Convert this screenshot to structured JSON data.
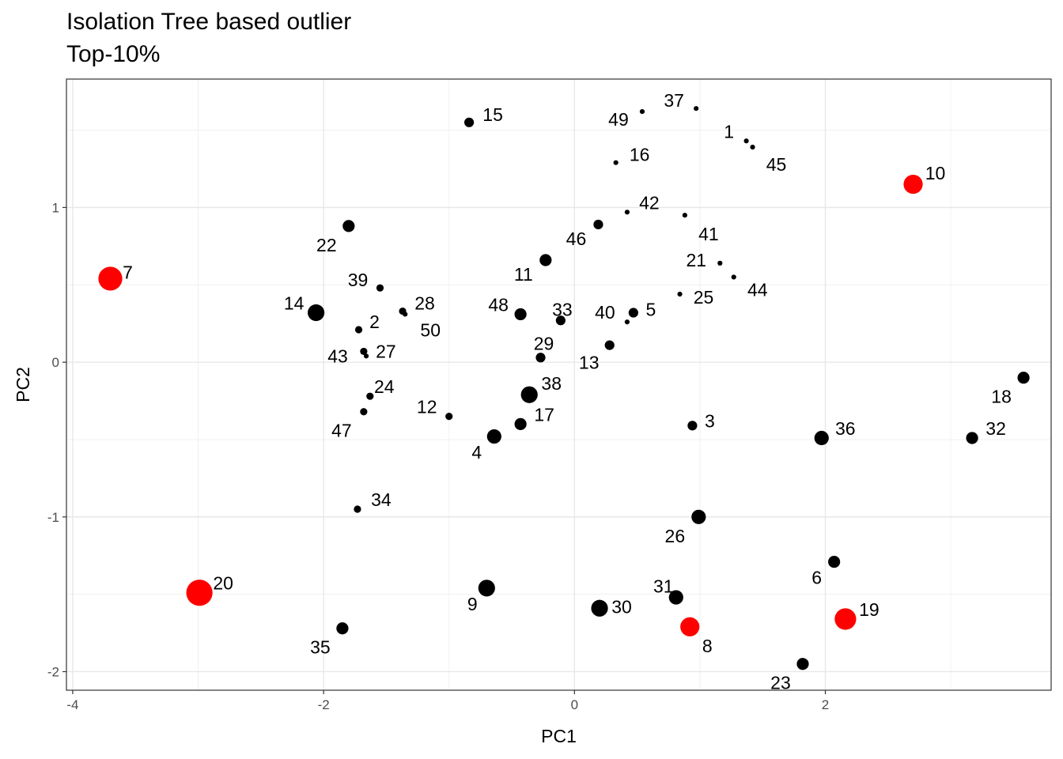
{
  "chart_data": {
    "type": "scatter",
    "title": "Isolation Tree based outlier",
    "subtitle": "Top-10%",
    "xlabel": "PC1",
    "ylabel": "PC2",
    "xlim": [
      -4.05,
      3.8
    ],
    "ylim": [
      -2.12,
      1.83
    ],
    "xticks": [
      -4,
      -2,
      0,
      2
    ],
    "yticks": [
      1,
      0,
      -1,
      -2
    ],
    "grid": true,
    "legend": "none",
    "colors": {
      "normal": "#000000",
      "outlier": "#ff0000"
    },
    "points": [
      {
        "id": "1",
        "x": 1.37,
        "y": 1.43,
        "size": 1,
        "outlier": false
      },
      {
        "id": "2",
        "x": -1.72,
        "y": 0.21,
        "size": 2,
        "outlier": false
      },
      {
        "id": "3",
        "x": 0.94,
        "y": -0.41,
        "size": 3,
        "outlier": false
      },
      {
        "id": "4",
        "x": -0.64,
        "y": -0.48,
        "size": 5,
        "outlier": false
      },
      {
        "id": "5",
        "x": 0.47,
        "y": 0.32,
        "size": 3,
        "outlier": false
      },
      {
        "id": "6",
        "x": 2.07,
        "y": -1.29,
        "size": 4,
        "outlier": false
      },
      {
        "id": "7",
        "x": -3.7,
        "y": 0.54,
        "size": 9,
        "outlier": true
      },
      {
        "id": "8",
        "x": 0.92,
        "y": -1.71,
        "size": 7,
        "outlier": true
      },
      {
        "id": "9",
        "x": -0.7,
        "y": -1.46,
        "size": 6,
        "outlier": false
      },
      {
        "id": "10",
        "x": 2.7,
        "y": 1.15,
        "size": 7,
        "outlier": true
      },
      {
        "id": "11",
        "x": -0.23,
        "y": 0.66,
        "size": 4,
        "outlier": false
      },
      {
        "id": "12",
        "x": -1.0,
        "y": -0.35,
        "size": 2,
        "outlier": false
      },
      {
        "id": "13",
        "x": 0.28,
        "y": 0.11,
        "size": 3,
        "outlier": false
      },
      {
        "id": "14",
        "x": -2.06,
        "y": 0.32,
        "size": 6,
        "outlier": false
      },
      {
        "id": "15",
        "x": -0.84,
        "y": 1.55,
        "size": 3,
        "outlier": false
      },
      {
        "id": "16",
        "x": 0.33,
        "y": 1.29,
        "size": 1,
        "outlier": false
      },
      {
        "id": "17",
        "x": -0.43,
        "y": -0.4,
        "size": 4,
        "outlier": false
      },
      {
        "id": "18",
        "x": 3.58,
        "y": -0.1,
        "size": 4,
        "outlier": false
      },
      {
        "id": "19",
        "x": 2.16,
        "y": -1.66,
        "size": 8,
        "outlier": true
      },
      {
        "id": "20",
        "x": -2.99,
        "y": -1.49,
        "size": 10,
        "outlier": true
      },
      {
        "id": "21",
        "x": 1.16,
        "y": 0.64,
        "size": 1,
        "outlier": false
      },
      {
        "id": "22",
        "x": -1.8,
        "y": 0.88,
        "size": 4,
        "outlier": false
      },
      {
        "id": "23",
        "x": 1.82,
        "y": -1.95,
        "size": 4,
        "outlier": false
      },
      {
        "id": "24",
        "x": -1.63,
        "y": -0.22,
        "size": 2,
        "outlier": false
      },
      {
        "id": "25",
        "x": 0.84,
        "y": 0.44,
        "size": 1,
        "outlier": false
      },
      {
        "id": "26",
        "x": 0.99,
        "y": -1.0,
        "size": 5,
        "outlier": false
      },
      {
        "id": "27",
        "x": -1.68,
        "y": 0.07,
        "size": 2,
        "outlier": false
      },
      {
        "id": "28",
        "x": -1.37,
        "y": 0.33,
        "size": 2,
        "outlier": false
      },
      {
        "id": "29",
        "x": -0.27,
        "y": 0.03,
        "size": 3,
        "outlier": false
      },
      {
        "id": "30",
        "x": 0.2,
        "y": -1.59,
        "size": 6,
        "outlier": false
      },
      {
        "id": "31",
        "x": 0.81,
        "y": -1.52,
        "size": 5,
        "outlier": false
      },
      {
        "id": "32",
        "x": 3.17,
        "y": -0.49,
        "size": 4,
        "outlier": false
      },
      {
        "id": "33",
        "x": -0.11,
        "y": 0.27,
        "size": 3,
        "outlier": false
      },
      {
        "id": "34",
        "x": -1.73,
        "y": -0.95,
        "size": 2,
        "outlier": false
      },
      {
        "id": "35",
        "x": -1.85,
        "y": -1.72,
        "size": 4,
        "outlier": false
      },
      {
        "id": "36",
        "x": 1.97,
        "y": -0.49,
        "size": 5,
        "outlier": false
      },
      {
        "id": "37",
        "x": 0.97,
        "y": 1.64,
        "size": 1,
        "outlier": false
      },
      {
        "id": "38",
        "x": -0.36,
        "y": -0.21,
        "size": 6,
        "outlier": false
      },
      {
        "id": "39",
        "x": -1.55,
        "y": 0.48,
        "size": 2,
        "outlier": false
      },
      {
        "id": "40",
        "x": 0.42,
        "y": 0.26,
        "size": 1,
        "outlier": false
      },
      {
        "id": "41",
        "x": 0.88,
        "y": 0.95,
        "size": 1,
        "outlier": false
      },
      {
        "id": "42",
        "x": 0.42,
        "y": 0.97,
        "size": 1,
        "outlier": false
      },
      {
        "id": "43",
        "x": -1.66,
        "y": 0.04,
        "size": 1,
        "outlier": false
      },
      {
        "id": "44",
        "x": 1.27,
        "y": 0.55,
        "size": 1,
        "outlier": false
      },
      {
        "id": "45",
        "x": 1.42,
        "y": 1.39,
        "size": 1,
        "outlier": false
      },
      {
        "id": "46",
        "x": 0.19,
        "y": 0.89,
        "size": 3,
        "outlier": false
      },
      {
        "id": "47",
        "x": -1.68,
        "y": -0.32,
        "size": 2,
        "outlier": false
      },
      {
        "id": "48",
        "x": -0.43,
        "y": 0.31,
        "size": 4,
        "outlier": false
      },
      {
        "id": "49",
        "x": 0.54,
        "y": 1.62,
        "size": 1,
        "outlier": false
      },
      {
        "id": "50",
        "x": -1.35,
        "y": 0.31,
        "size": 1,
        "outlier": false
      }
    ]
  }
}
